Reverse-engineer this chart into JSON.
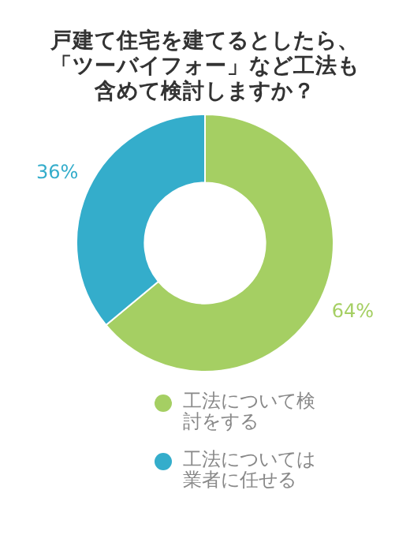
{
  "chart_data": {
    "type": "donut",
    "title": "戸建て住宅を建てるとしたら、「ツーバイフォー」など工法も含めて検討しますか？",
    "categories": [
      "工法について検討をする",
      "工法については業者に任せる"
    ],
    "values": [
      64,
      36
    ],
    "colors": [
      "#a5cf63",
      "#34adcb"
    ],
    "value_labels": [
      "64%",
      "36%"
    ],
    "legend": "bottom"
  }
}
